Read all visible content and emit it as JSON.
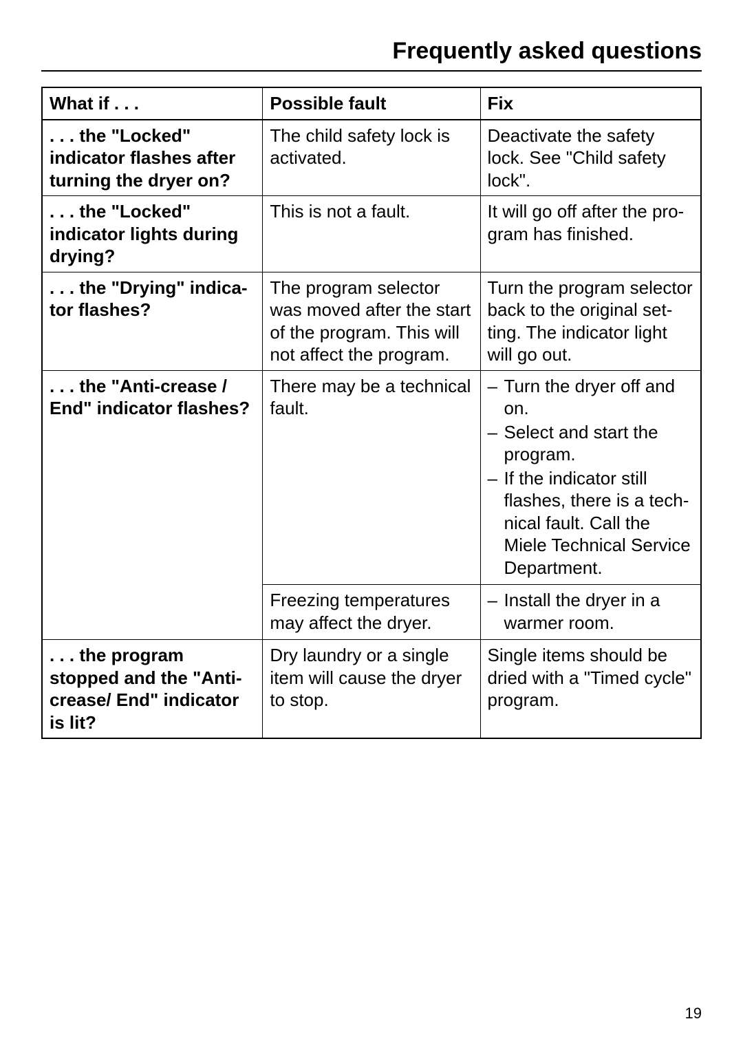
{
  "page": {
    "title": "Frequently asked questions",
    "number": "19"
  },
  "table": {
    "headers": {
      "whatif": "What if . . .",
      "fault": "Possible fault",
      "fix": "Fix"
    },
    "rows": {
      "r1": {
        "whatif": ". . . the \"Locked\" indicator flashes after turning the dryer on?",
        "fault": "The child safety lock is activated.",
        "fix": "Deactivate the safety lock. See \"Child safety lock\"."
      },
      "r2": {
        "whatif": ". . . the \"Locked\" indicator lights during drying?",
        "fault": "This is not a fault.",
        "fix": "It will go off after the pro­gram has finished."
      },
      "r3": {
        "whatif": ". . . the \"Drying\" indica­tor flashes?",
        "fault": "The program selector was moved after the start of the program. This will not affect the program.",
        "fix": "Turn the program selector back to the original set­ting. The indicator light will go out."
      },
      "r4": {
        "whatif": ". . . the \"Anti-crease / End\" indicator flashes?",
        "fault_a": "There may be a technical fault.",
        "fix_a_items": [
          "Turn the dryer off and on.",
          "Select and start the program.",
          "If the indicator still flashes, there is a tech­nical fault. Call the Miele Technical Service Department."
        ],
        "fault_b": "Freezing temperatures may affect the dryer.",
        "fix_b_items": [
          "Install the dryer in a warmer room."
        ]
      },
      "r5": {
        "whatif": ". . . the program stopped and the \"Anti-crease/ End\" indicator is lit?",
        "fault": "Dry laundry or a single item will cause the dryer to stop.",
        "fix": "Single items should be dried with a \"Timed cycle\" program."
      }
    }
  }
}
